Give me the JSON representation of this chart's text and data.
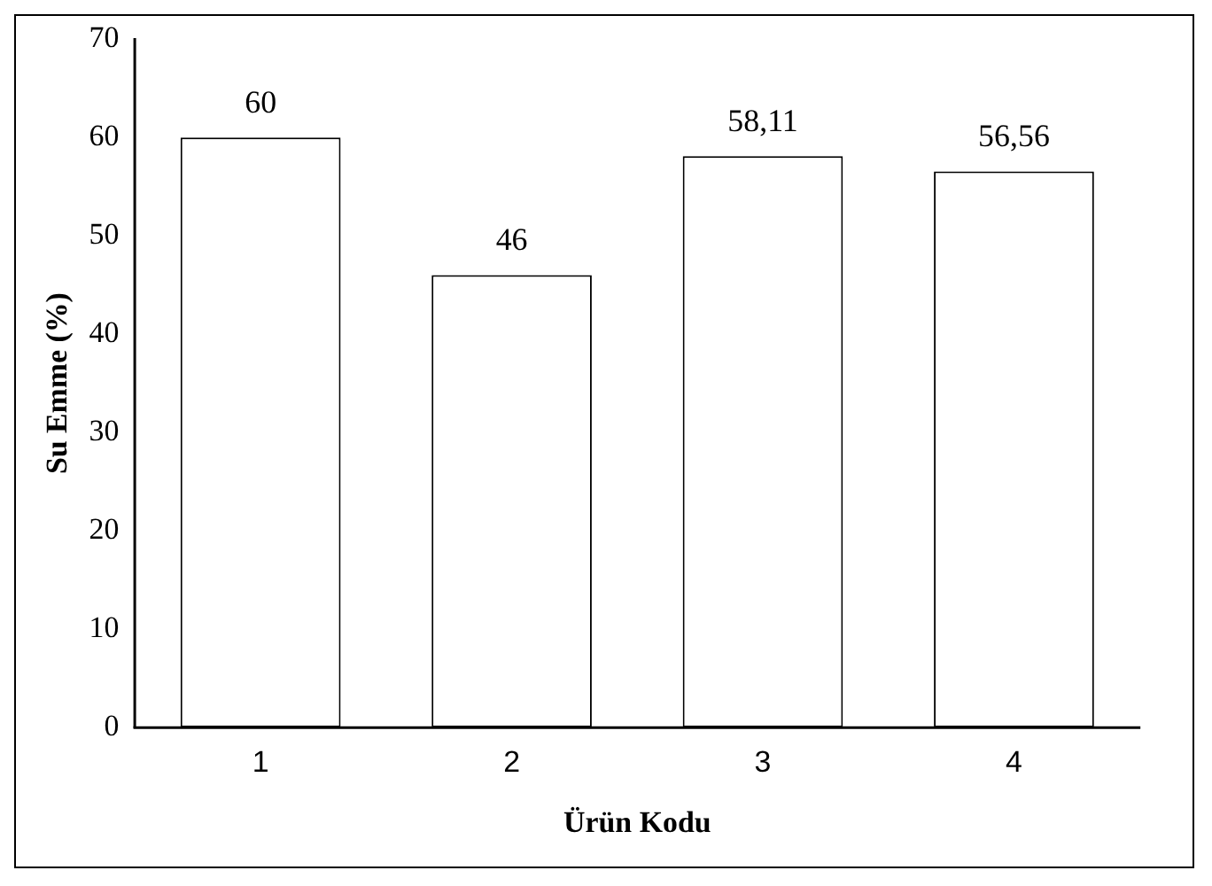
{
  "chart_data": {
    "type": "bar",
    "xlabel": "Ürün Kodu",
    "ylabel": "Su Emme (%)",
    "categories": [
      "1",
      "2",
      "3",
      "4"
    ],
    "values": [
      60,
      46,
      58.11,
      56.56
    ],
    "value_labels": [
      "60",
      "46",
      "58,11",
      "56,56"
    ],
    "color": "#ffffff",
    "ylim": [
      0,
      70
    ],
    "yticks": [
      0,
      10,
      20,
      30,
      40,
      50,
      60,
      70
    ],
    "grid": false,
    "legend": false
  }
}
